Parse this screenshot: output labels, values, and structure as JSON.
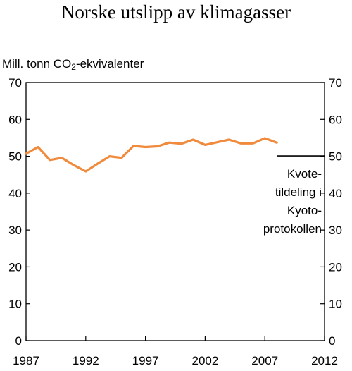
{
  "chart_data": {
    "type": "line",
    "title": "Norske utslipp av klimagasser",
    "ylabel": {
      "prefix": "Mill. tonn CO",
      "subscript": "2",
      "suffix": "-ekvivalenter"
    },
    "xlim": [
      1987,
      2012
    ],
    "ylim": [
      0,
      70
    ],
    "x_ticks": [
      1987,
      1992,
      1997,
      2002,
      2007,
      2012
    ],
    "y_ticks": [
      0,
      10,
      20,
      30,
      40,
      50,
      60,
      70
    ],
    "grid": false,
    "series": [
      {
        "color": "#f08a3c",
        "x": [
          1987,
          1988,
          1989,
          1990,
          1991,
          1992,
          1993,
          1994,
          1995,
          1996,
          1997,
          1998,
          1999,
          2000,
          2001,
          2002,
          2003,
          2004,
          2005,
          2006,
          2007,
          2008
        ],
        "y": [
          50.7,
          52.5,
          49.0,
          49.6,
          47.6,
          45.9,
          48.0,
          50.0,
          49.6,
          52.8,
          52.5,
          52.7,
          53.7,
          53.4,
          54.5,
          53.1,
          53.8,
          54.5,
          53.5,
          53.5,
          54.9,
          53.7
        ]
      }
    ],
    "reference_line": {
      "x": [
        2008,
        2012
      ],
      "y": 50.1,
      "color": "#000000",
      "label": [
        "Kvote-",
        "tildeling i",
        "Kyoto-",
        "protokollen"
      ]
    }
  }
}
